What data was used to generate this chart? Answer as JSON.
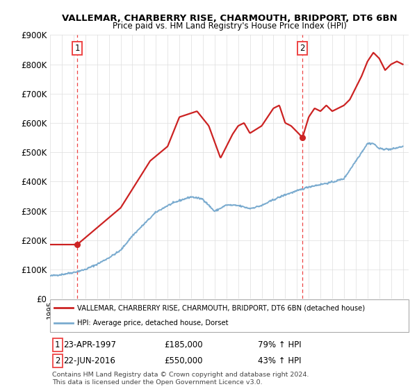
{
  "title": "VALLEMAR, CHARBERRY RISE, CHARMOUTH, BRIDPORT, DT6 6BN",
  "subtitle": "Price paid vs. HM Land Registry's House Price Index (HPI)",
  "sale1_date": 1997.31,
  "sale1_price": 185000,
  "sale2_date": 2016.47,
  "sale2_price": 550000,
  "hpi_color": "#7aabcf",
  "price_color": "#cc2222",
  "vline_color": "#ee4444",
  "legend_line1": "VALLEMAR, CHARBERRY RISE, CHARMOUTH, BRIDPORT, DT6 6BN (detached house)",
  "legend_line2": "HPI: Average price, detached house, Dorset",
  "ann1_num": "1",
  "ann1_date": "23-APR-1997",
  "ann1_price": "£185,000",
  "ann1_hpi": "79% ↑ HPI",
  "ann2_num": "2",
  "ann2_date": "22-JUN-2016",
  "ann2_price": "£550,000",
  "ann2_hpi": "43% ↑ HPI",
  "footer": "Contains HM Land Registry data © Crown copyright and database right 2024.\nThis data is licensed under the Open Government Licence v3.0.",
  "ylim": [
    0,
    900000
  ],
  "xlim_start": 1995,
  "xlim_end": 2025.5
}
